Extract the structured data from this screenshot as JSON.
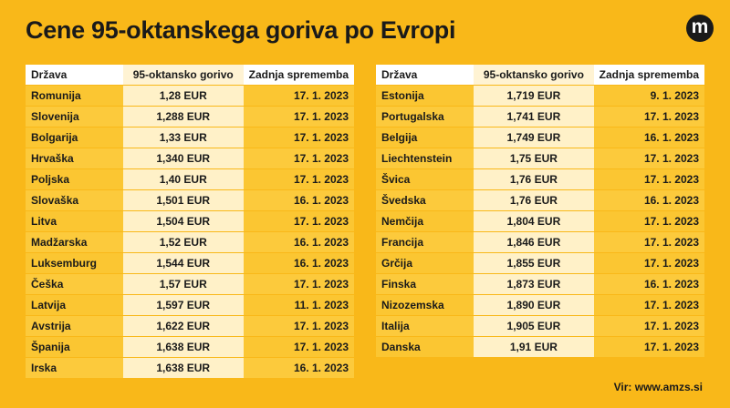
{
  "title": "Cene 95-oktanskega goriva po Evropi",
  "logo_letter": "m",
  "headers": {
    "country": "Država",
    "price": "95-oktansko gorivo",
    "changed": "Zadnja sprememba"
  },
  "left_rows": [
    {
      "country": "Romunija",
      "price": "1,28 EUR",
      "changed": "17. 1. 2023"
    },
    {
      "country": "Slovenija",
      "price": "1,288 EUR",
      "changed": "17. 1. 2023"
    },
    {
      "country": "Bolgarija",
      "price": "1,33 EUR",
      "changed": "17. 1. 2023"
    },
    {
      "country": "Hrvaška",
      "price": "1,340 EUR",
      "changed": "17. 1. 2023"
    },
    {
      "country": "Poljska",
      "price": "1,40 EUR",
      "changed": "17. 1. 2023"
    },
    {
      "country": "Slovaška",
      "price": "1,501 EUR",
      "changed": "16. 1. 2023"
    },
    {
      "country": "Litva",
      "price": "1,504 EUR",
      "changed": "17. 1. 2023"
    },
    {
      "country": "Madžarska",
      "price": "1,52 EUR",
      "changed": "16. 1. 2023"
    },
    {
      "country": "Luksemburg",
      "price": "1,544 EUR",
      "changed": "16. 1. 2023"
    },
    {
      "country": "Češka",
      "price": "1,57 EUR",
      "changed": "17. 1. 2023"
    },
    {
      "country": "Latvija",
      "price": "1,597 EUR",
      "changed": "11. 1. 2023"
    },
    {
      "country": "Avstrija",
      "price": "1,622 EUR",
      "changed": "17. 1. 2023"
    },
    {
      "country": "Španija",
      "price": "1,638 EUR",
      "changed": "17. 1. 2023"
    },
    {
      "country": "Irska",
      "price": "1,638 EUR",
      "changed": "16. 1. 2023"
    }
  ],
  "right_rows": [
    {
      "country": "Estonija",
      "price": "1,719 EUR",
      "changed": "9. 1. 2023"
    },
    {
      "country": "Portugalska",
      "price": "1,741 EUR",
      "changed": "17. 1. 2023"
    },
    {
      "country": "Belgija",
      "price": "1,749 EUR",
      "changed": "16. 1. 2023"
    },
    {
      "country": "Liechtenstein",
      "price": "1,75 EUR",
      "changed": "17. 1. 2023"
    },
    {
      "country": "Švica",
      "price": "1,76 EUR",
      "changed": "17. 1. 2023"
    },
    {
      "country": "Švedska",
      "price": "1,76 EUR",
      "changed": "16. 1. 2023"
    },
    {
      "country": "Nemčija",
      "price": "1,804 EUR",
      "changed": "17. 1. 2023"
    },
    {
      "country": "Francija",
      "price": "1,846 EUR",
      "changed": "17. 1. 2023"
    },
    {
      "country": "Grčija",
      "price": "1,855 EUR",
      "changed": "17. 1. 2023"
    },
    {
      "country": "Finska",
      "price": "1,873 EUR",
      "changed": "16. 1. 2023"
    },
    {
      "country": "Nizozemska",
      "price": "1,890 EUR",
      "changed": "17. 1. 2023"
    },
    {
      "country": "Italija",
      "price": "1,905 EUR",
      "changed": "17. 1. 2023"
    },
    {
      "country": "Danska",
      "price": "1,91 EUR",
      "changed": "17. 1. 2023"
    }
  ],
  "source": "Vir: www.amzs.si"
}
